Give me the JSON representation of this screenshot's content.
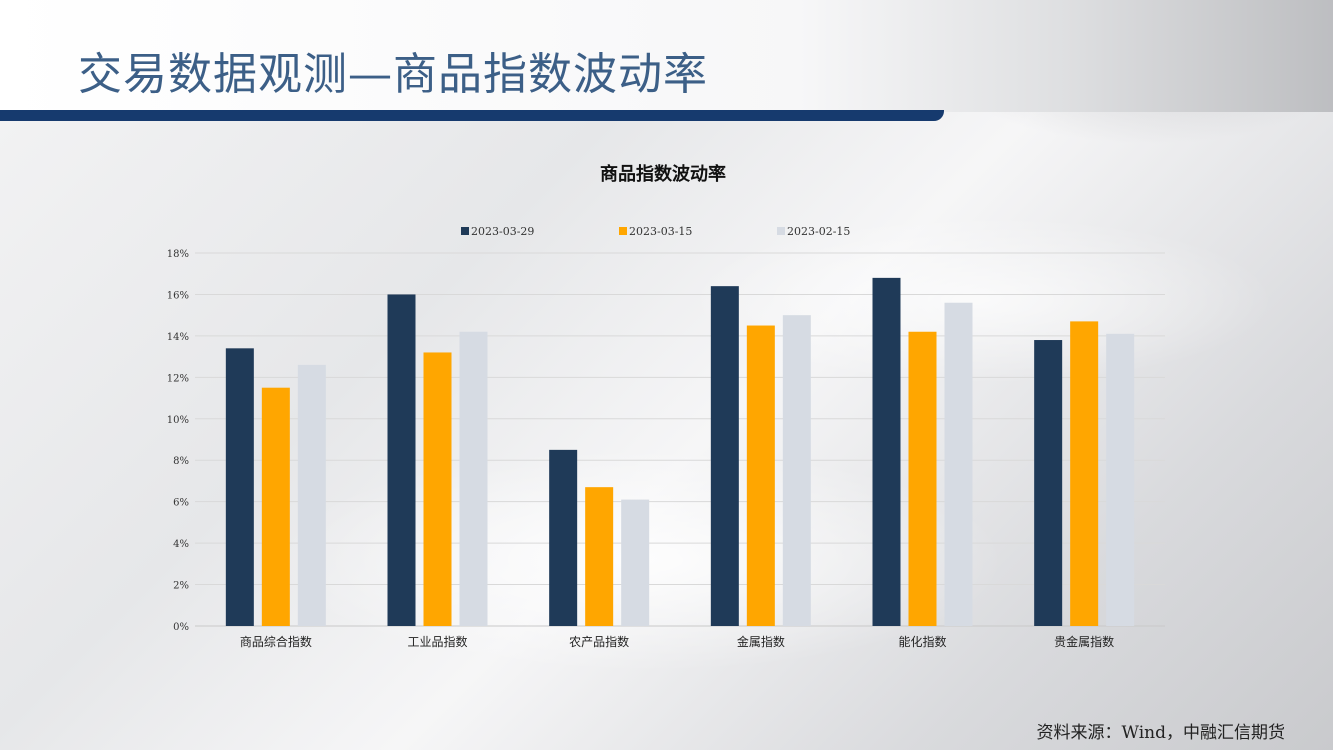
{
  "page": {
    "title": "交易数据观测—商品指数波动率",
    "source_note": "资料来源：Wind，中融汇信期货"
  },
  "chart_data": {
    "type": "bar",
    "title": "商品指数波动率",
    "categories": [
      "商品综合指数",
      "工业品指数",
      "农产品指数",
      "金属指数",
      "能化指数",
      "贵金属指数"
    ],
    "series": [
      {
        "name": "2023-03-29",
        "color": "#1f3a58",
        "values": [
          13.4,
          16.0,
          8.5,
          16.4,
          16.8,
          13.8
        ]
      },
      {
        "name": "2023-03-15",
        "color": "#ffa600",
        "values": [
          11.5,
          13.2,
          6.7,
          14.5,
          14.2,
          14.7
        ]
      },
      {
        "name": "2023-02-15",
        "color": "#d6dbe3",
        "values": [
          12.6,
          14.2,
          6.1,
          15.0,
          15.6,
          14.1
        ]
      }
    ],
    "ylim": [
      0,
      18
    ],
    "yticks": [
      0,
      2,
      4,
      6,
      8,
      10,
      12,
      14,
      16,
      18
    ],
    "ytick_format": "{v}%",
    "xlabel": "",
    "ylabel": "",
    "grid": true,
    "legend_position": "top-center"
  }
}
